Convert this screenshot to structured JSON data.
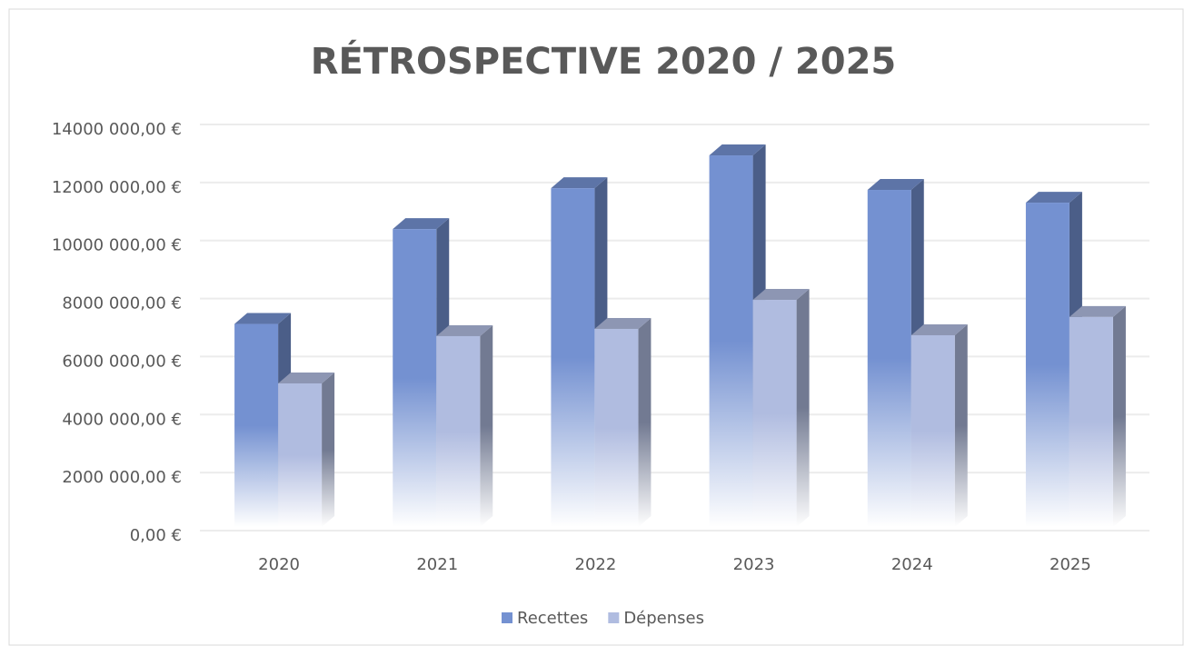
{
  "chart_data": {
    "type": "bar3d",
    "title": "RÉTROSPECTIVE 2020 / 2025",
    "categories": [
      "2020",
      "2021",
      "2022",
      "2023",
      "2024",
      "2025"
    ],
    "series": [
      {
        "name": "Recettes",
        "color": "#7491d1",
        "values": [
          7500000,
          10770000,
          12180000,
          13310000,
          12120000,
          11680000
        ]
      },
      {
        "name": "Dépenses",
        "color": "#b0bce0",
        "values": [
          5450000,
          7080000,
          7330000,
          8330000,
          7110000,
          7740000
        ]
      }
    ],
    "ylim": [
      0,
      14000000
    ],
    "yticks": [
      {
        "value": 0,
        "label": "0,00 €"
      },
      {
        "value": 2000000,
        "label": "2000 000,00 €"
      },
      {
        "value": 4000000,
        "label": "4000 000,00 €"
      },
      {
        "value": 6000000,
        "label": "6000 000,00 €"
      },
      {
        "value": 8000000,
        "label": "8000 000,00 €"
      },
      {
        "value": 10000000,
        "label": "10000 000,00 €"
      },
      {
        "value": 12000000,
        "label": "12000 000,00 €"
      },
      {
        "value": 14000000,
        "label": "14000 000,00 €"
      }
    ],
    "grid": true,
    "legend": "bottom"
  }
}
